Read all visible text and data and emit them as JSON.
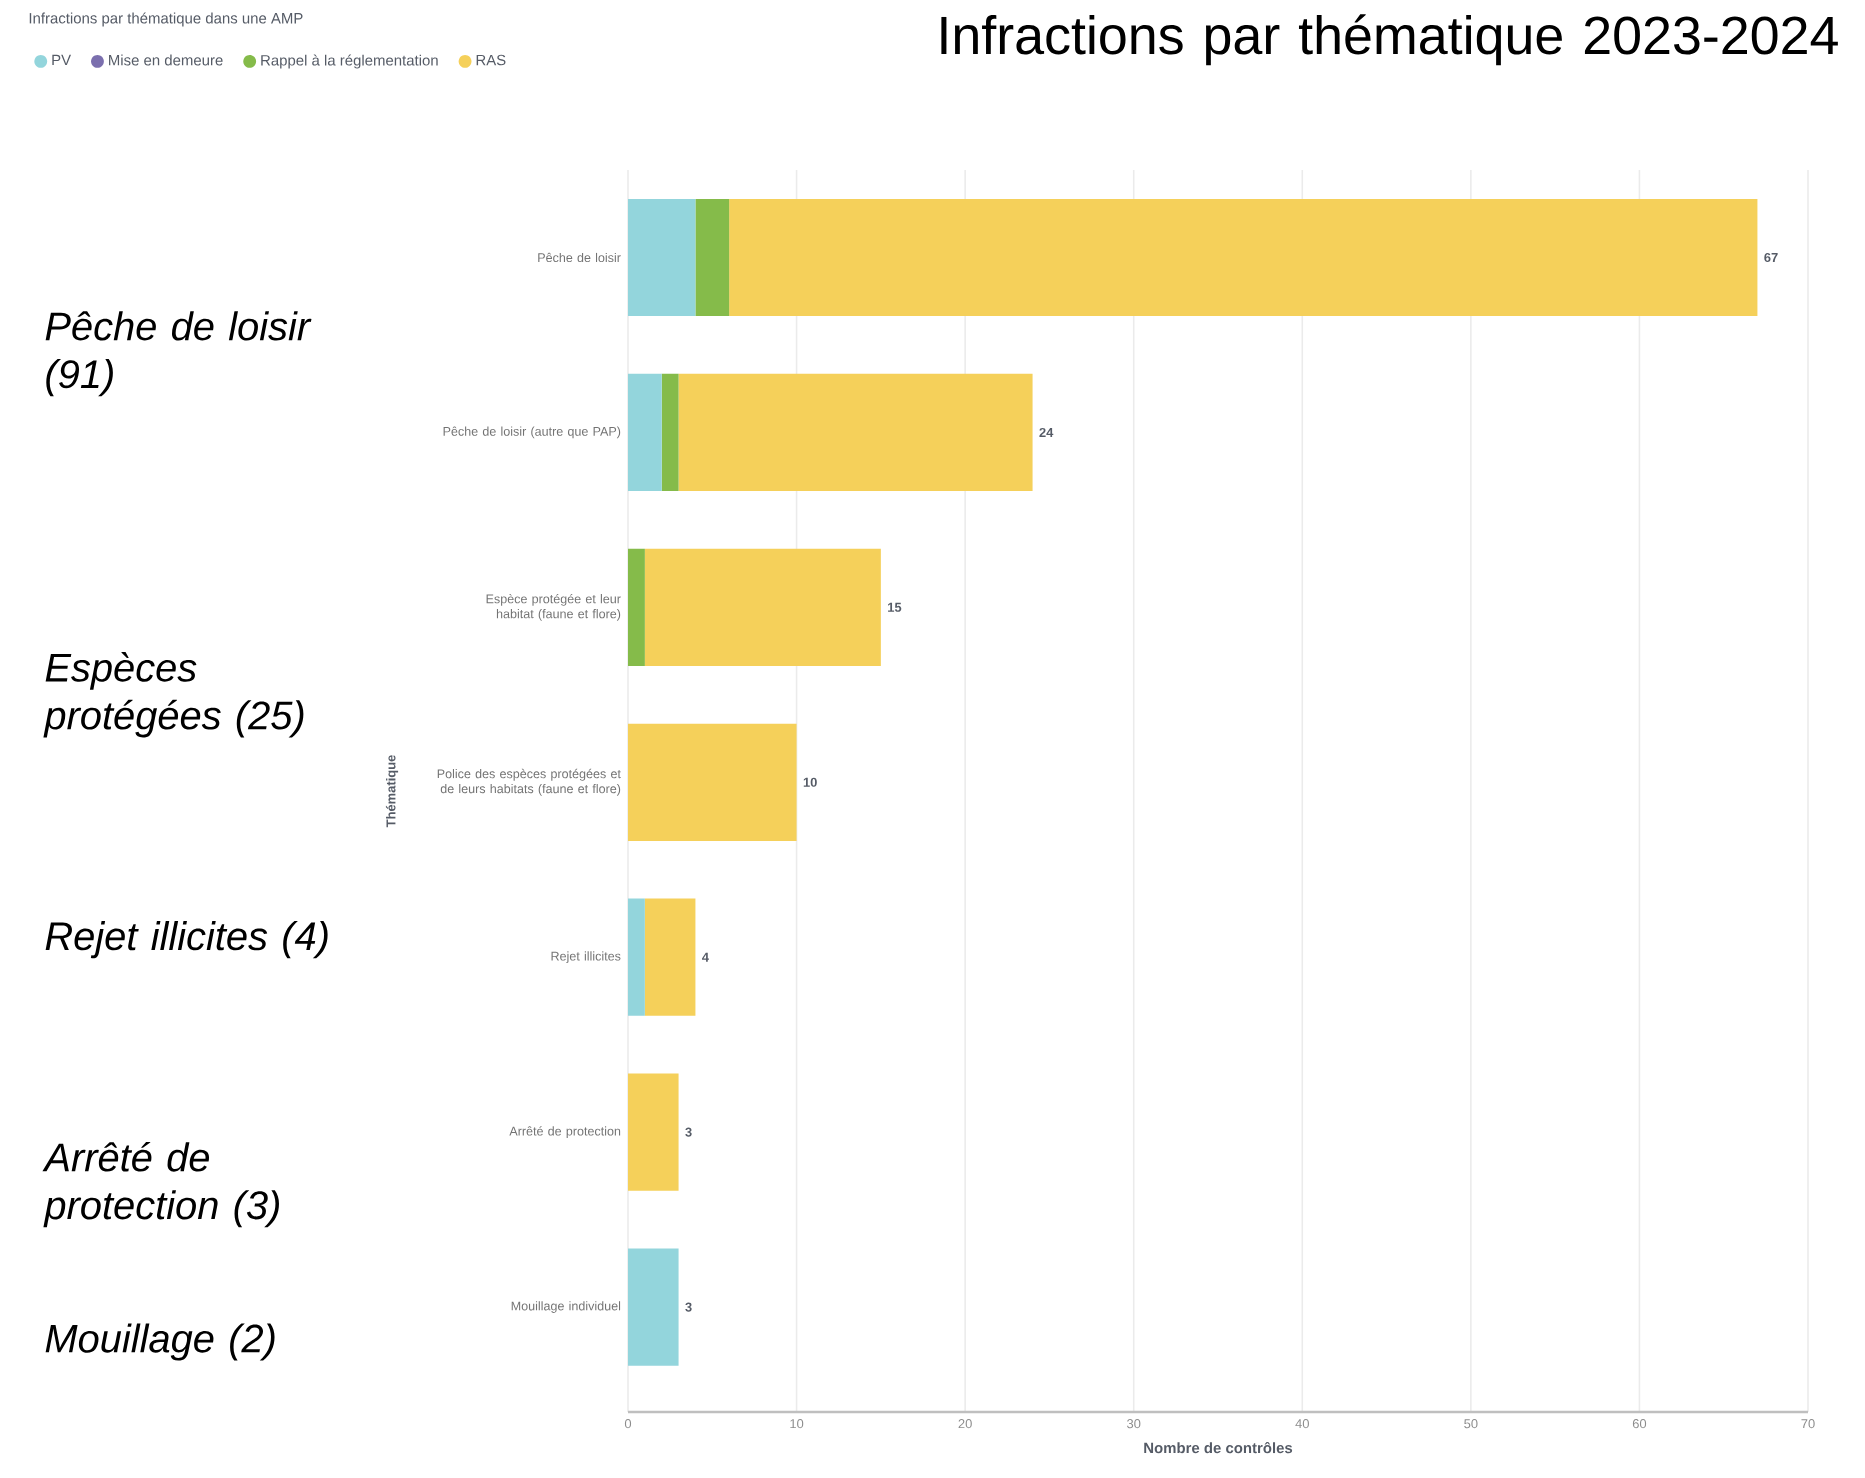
{
  "chart_data": {
    "type": "bar",
    "orientation": "horizontal",
    "stacked": true,
    "title": "Infractions par thématique 2023-2024",
    "subtitle": "Infractions par thématique dans une AMP",
    "xlabel": "Nombre de contrôles",
    "ylabel": "Thématique",
    "categories": [
      "Pêche de loisir",
      "Pêche de loisir (autre que PAP)",
      "Espèce protégée et leur habitat (faune et flore)",
      "Police des espèces protégées et de leurs habitats (faune et flore)",
      "Rejet illicites",
      "Arrêté de protection",
      "Mouillage individuel"
    ],
    "series": [
      {
        "name": "PV",
        "color": "#93d5dc",
        "values": [
          4,
          2,
          0,
          0,
          1,
          0,
          3
        ]
      },
      {
        "name": "Mise en demeure",
        "color": "#7b6fae",
        "values": [
          0,
          0,
          0,
          0,
          0,
          0,
          0
        ]
      },
      {
        "name": "Rappel à la réglementation",
        "color": "#85bb4a",
        "values": [
          2,
          1,
          1,
          0,
          0,
          0,
          0
        ]
      },
      {
        "name": "RAS",
        "color": "#f5d05a",
        "values": [
          61,
          21,
          14,
          10,
          3,
          3,
          0
        ]
      }
    ],
    "totals": [
      "67",
      "24",
      "15",
      "10",
      "4",
      "3",
      "3"
    ],
    "xlim": [
      0,
      70
    ],
    "xticks": [
      0,
      10,
      20,
      30,
      40,
      50,
      60,
      70
    ],
    "grid": "x",
    "legend": "top left",
    "annotations": [
      "Pêche de loisir (91)",
      "Espèces protégées (25)",
      "Rejet illicites (4)",
      "Arrêté de protection (3)",
      "Mouillage (2)"
    ]
  }
}
